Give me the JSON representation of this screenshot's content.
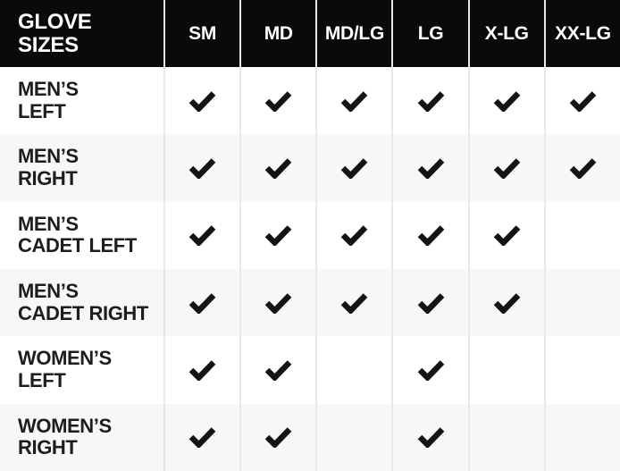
{
  "title": "Glove sizes availability table",
  "colors": {
    "header_bg": "#0a0a0a",
    "header_text": "#ffffff",
    "row_bg": "#ffffff",
    "row_alt_bg": "#f7f7f7",
    "divider": "#e8e8e8",
    "text": "#1f1c1d",
    "check": "#161314"
  },
  "icons": {
    "check": "check-icon"
  },
  "table": {
    "corner_label_lines": [
      "GLOVE",
      "SIZES"
    ],
    "columns": [
      "SM",
      "MD",
      "MD/LG",
      "LG",
      "X-LG",
      "XX-LG"
    ],
    "rows": [
      {
        "label_lines": [
          "MEN’S",
          "LEFT"
        ],
        "checks": [
          true,
          true,
          true,
          true,
          true,
          true
        ]
      },
      {
        "label_lines": [
          "MEN’S",
          "RIGHT"
        ],
        "checks": [
          true,
          true,
          true,
          true,
          true,
          true
        ]
      },
      {
        "label_lines": [
          "MEN’S",
          "CADET LEFT"
        ],
        "checks": [
          true,
          true,
          true,
          true,
          true,
          false
        ]
      },
      {
        "label_lines": [
          "MEN’S",
          "CADET RIGHT"
        ],
        "checks": [
          true,
          true,
          true,
          true,
          true,
          false
        ]
      },
      {
        "label_lines": [
          "WOMEN’S",
          "LEFT"
        ],
        "checks": [
          true,
          true,
          false,
          true,
          false,
          false
        ]
      },
      {
        "label_lines": [
          "WOMEN’S",
          "RIGHT"
        ],
        "checks": [
          true,
          true,
          false,
          true,
          false,
          false
        ]
      }
    ]
  },
  "chart_data": {
    "type": "table",
    "title": "GLOVE SIZES",
    "columns": [
      "SM",
      "MD",
      "MD/LG",
      "LG",
      "X-LG",
      "XX-LG"
    ],
    "row_labels": [
      "MEN’S LEFT",
      "MEN’S RIGHT",
      "MEN’S CADET LEFT",
      "MEN’S CADET RIGHT",
      "WOMEN’S LEFT",
      "WOMEN’S RIGHT"
    ],
    "cell_values": [
      [
        1,
        1,
        1,
        1,
        1,
        1
      ],
      [
        1,
        1,
        1,
        1,
        1,
        1
      ],
      [
        1,
        1,
        1,
        1,
        1,
        0
      ],
      [
        1,
        1,
        1,
        1,
        1,
        0
      ],
      [
        1,
        1,
        0,
        1,
        0,
        0
      ],
      [
        1,
        1,
        0,
        1,
        0,
        0
      ]
    ],
    "legend": "1 = checkmark shown (available), 0 = blank cell",
    "layout": "zebra-striped rows, black header row, vertical column dividers"
  }
}
